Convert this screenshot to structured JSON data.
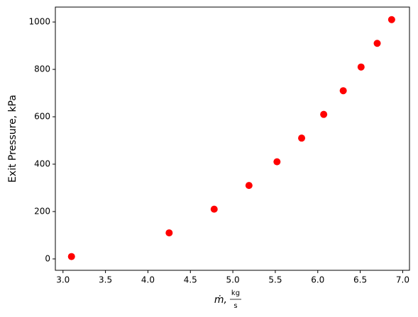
{
  "chart_data": {
    "type": "scatter",
    "x_label": {
      "symbol": "ṁ,",
      "numerator": "kg",
      "denominator": "s"
    },
    "y_label": "Exit Pressure, kPa",
    "x": [
      3.1,
      4.25,
      4.78,
      5.19,
      5.52,
      5.81,
      6.07,
      6.3,
      6.51,
      6.7,
      6.87
    ],
    "values": [
      10,
      110,
      210,
      310,
      410,
      510,
      610,
      710,
      810,
      910,
      1010
    ],
    "color": "#ff0000",
    "xlim": [
      2.91,
      7.08
    ],
    "ylim": [
      -48,
      1063
    ],
    "xticks": [
      {
        "value": 3,
        "label": "3.0"
      },
      {
        "value": 3.5,
        "label": "3.5"
      },
      {
        "value": 4,
        "label": "4.0"
      },
      {
        "value": 4.5,
        "label": "4.5"
      },
      {
        "value": 5,
        "label": "5.0"
      },
      {
        "value": 5.5,
        "label": "5.5"
      },
      {
        "value": 6,
        "label": "6.0"
      },
      {
        "value": 6.5,
        "label": "6.5"
      },
      {
        "value": 7,
        "label": "7.0"
      }
    ],
    "yticks": [
      0,
      200,
      400,
      600,
      800,
      1000
    ],
    "grid": false
  }
}
